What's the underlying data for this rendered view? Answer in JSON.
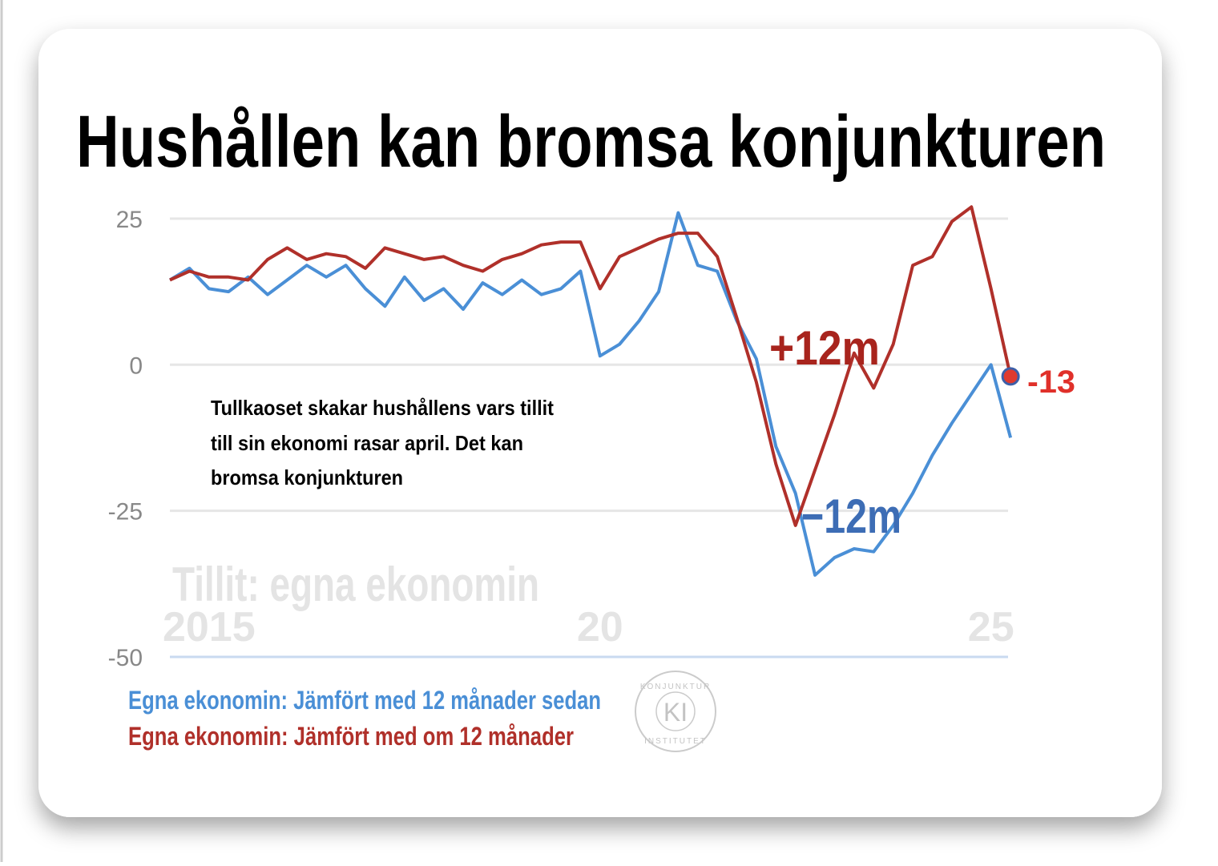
{
  "chart_data": {
    "type": "line",
    "title": "Hushållen kan bromsa konjunkturen",
    "annotation_lines": [
      "Tullkaoset skakar hushållens vars tillit",
      "till sin ekonomi rasar april. Det kan",
      "bromsa konjunkturen"
    ],
    "watermark": "Tillit: egna ekonomin",
    "label_red": "+12m",
    "label_blue": "−12m",
    "end_label": "-13",
    "logo": {
      "initials": "KI",
      "top": "KONJUNKTUR",
      "bottom": "INSTITUTET"
    },
    "x": [
      2014.5,
      2014.75,
      2015,
      2015.25,
      2015.5,
      2015.75,
      2016,
      2016.25,
      2016.5,
      2016.75,
      2017,
      2017.25,
      2017.5,
      2017.75,
      2018,
      2018.25,
      2018.5,
      2018.75,
      2019,
      2019.25,
      2019.5,
      2019.75,
      2020,
      2020.25,
      2020.5,
      2020.75,
      2021,
      2021.25,
      2021.5,
      2021.75,
      2022,
      2022.25,
      2022.5,
      2022.75,
      2023,
      2023.25,
      2023.5,
      2023.75,
      2024,
      2024.25,
      2024.5,
      2024.75,
      2025,
      2025.25
    ],
    "series": [
      {
        "name": "Egna ekonomin: Jämfört med 12 månader sedan",
        "color": "#4a8fd6",
        "values": [
          14.5,
          16.5,
          13,
          12.5,
          15,
          12,
          14.5,
          17,
          15,
          17,
          13,
          10,
          15,
          11,
          13,
          9.5,
          14,
          12,
          14.5,
          12,
          13,
          16,
          1.5,
          3.5,
          7.5,
          12.5,
          26,
          17,
          16,
          7.5,
          1,
          -14,
          -22,
          -36,
          -33,
          -31.5,
          -32,
          -27.5,
          -22,
          -15.5,
          -10,
          -5,
          0,
          -12.5
        ]
      },
      {
        "name": "Egna ekonomin: Jämfört med om 12 månader",
        "color": "#b0302a",
        "values": [
          14.5,
          16,
          15,
          15,
          14.5,
          18,
          20,
          18,
          19,
          18.5,
          16.5,
          20,
          19,
          18,
          18.5,
          17,
          16,
          18,
          19,
          20.5,
          21,
          21,
          13,
          18.5,
          20,
          21.5,
          22.5,
          22.5,
          18.5,
          8,
          -3,
          -17,
          -27.5,
          -18,
          -8.5,
          2,
          -4,
          3.5,
          17,
          18.5,
          24.5,
          27,
          13,
          -2
        ]
      }
    ],
    "xlim": [
      2014.5,
      2025.3
    ],
    "xticks": [
      {
        "value": 2015,
        "label": "2015"
      },
      {
        "value": 2020,
        "label": "20"
      },
      {
        "value": 2025,
        "label": "25"
      }
    ],
    "ylim": [
      -50,
      28
    ],
    "yticks": [
      25,
      0,
      -25,
      -50
    ],
    "grid": true
  }
}
